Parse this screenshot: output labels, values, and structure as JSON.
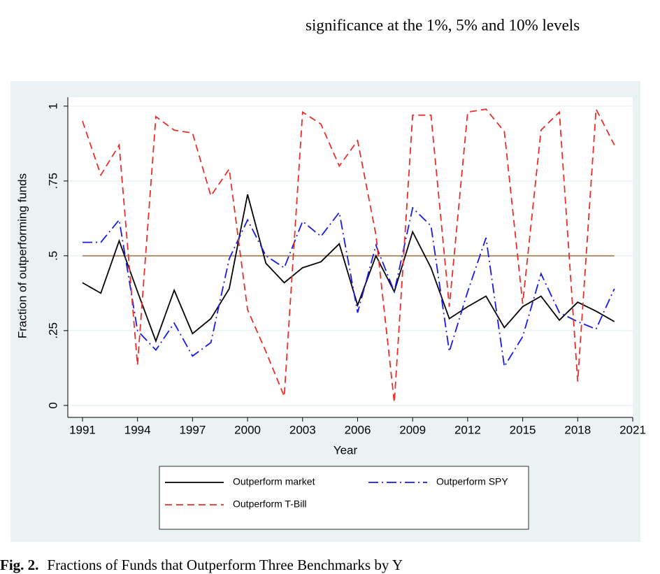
{
  "header_text": "significance at the 1%, 5% and 10% levels",
  "caption": {
    "label": "Fig. 2.",
    "text": "Fractions of Funds that Outperform Three Benchmarks by Y"
  },
  "chart_data": {
    "type": "line",
    "y_label": "Fraction of outperforming funds",
    "x_label": "Year",
    "x": [
      1991,
      1992,
      1993,
      1994,
      1995,
      1996,
      1997,
      1998,
      1999,
      2000,
      2001,
      2002,
      2003,
      2004,
      2005,
      2006,
      2007,
      2008,
      2009,
      2010,
      2011,
      2012,
      2013,
      2014,
      2015,
      2016,
      2017,
      2018,
      2019,
      2020
    ],
    "series": [
      {
        "name": "Outperform market",
        "color": "#000000",
        "dash": "solid",
        "values": [
          0.41,
          0.375,
          0.55,
          0.38,
          0.215,
          0.385,
          0.24,
          0.29,
          0.39,
          0.705,
          0.475,
          0.41,
          0.46,
          0.48,
          0.54,
          0.335,
          0.5,
          0.38,
          0.58,
          0.46,
          0.29,
          0.33,
          0.365,
          0.26,
          0.33,
          0.365,
          0.285,
          0.345,
          0.315,
          0.28
        ]
      },
      {
        "name": "Outperform SPY",
        "color": "#1a1ae6",
        "dash": "dashdot",
        "values": [
          0.545,
          0.545,
          0.62,
          0.25,
          0.185,
          0.275,
          0.165,
          0.21,
          0.49,
          0.62,
          0.5,
          0.46,
          0.615,
          0.565,
          0.645,
          0.31,
          0.535,
          0.38,
          0.66,
          0.6,
          0.18,
          0.38,
          0.56,
          0.13,
          0.23,
          0.44,
          0.31,
          0.28,
          0.255,
          0.39
        ]
      },
      {
        "name": "Outperform T-Bill",
        "color": "#e8302a",
        "dash": "dash",
        "values": [
          0.95,
          0.77,
          0.87,
          0.135,
          0.965,
          0.92,
          0.91,
          0.7,
          0.79,
          0.32,
          0.18,
          0.03,
          0.98,
          0.94,
          0.8,
          0.885,
          0.57,
          0.01,
          0.97,
          0.97,
          0.33,
          0.98,
          0.99,
          0.915,
          0.34,
          0.92,
          0.98,
          0.08,
          0.99,
          0.87
        ]
      }
    ],
    "reference_line": {
      "value": 0.5,
      "color": "#b09068"
    },
    "xlim": [
      1990.2,
      2021
    ],
    "xticks": [
      1991,
      1994,
      1997,
      2000,
      2003,
      2006,
      2009,
      2012,
      2015,
      2018,
      2021
    ],
    "ylim": [
      -0.04,
      1.03
    ],
    "yticks": [
      0,
      {
        "value": 0.25,
        "label": ".25"
      },
      {
        "value": 0.5,
        "label": ".5"
      },
      {
        "value": 0.75,
        "label": ".75"
      },
      1
    ],
    "grid": true
  }
}
